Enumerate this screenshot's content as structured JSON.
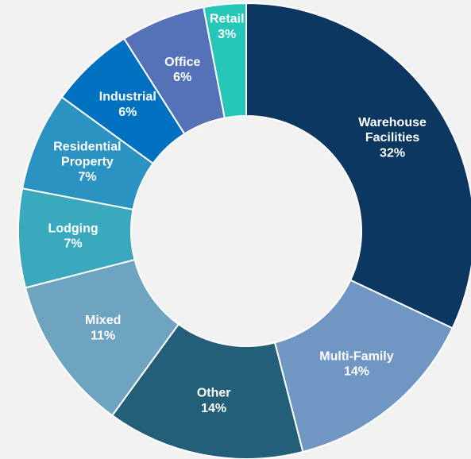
{
  "chart_data": {
    "type": "donut",
    "categories": [
      "Warehouse Facilities",
      "Multi-Family",
      "Other",
      "Mixed",
      "Lodging",
      "Residential Property",
      "Industrial",
      "Office",
      "Retail"
    ],
    "values": [
      32,
      14,
      14,
      11,
      7,
      7,
      6,
      6,
      3
    ],
    "value_labels": [
      "32%",
      "14%",
      "14%",
      "11%",
      "7%",
      "7%",
      "6%",
      "6%",
      "3%"
    ],
    "colors": [
      "#0b3761",
      "#7096c4",
      "#235f78",
      "#6fa4c1",
      "#3aa9be",
      "#2a93c2",
      "#0070c0",
      "#5572b8",
      "#26c6b9"
    ]
  }
}
